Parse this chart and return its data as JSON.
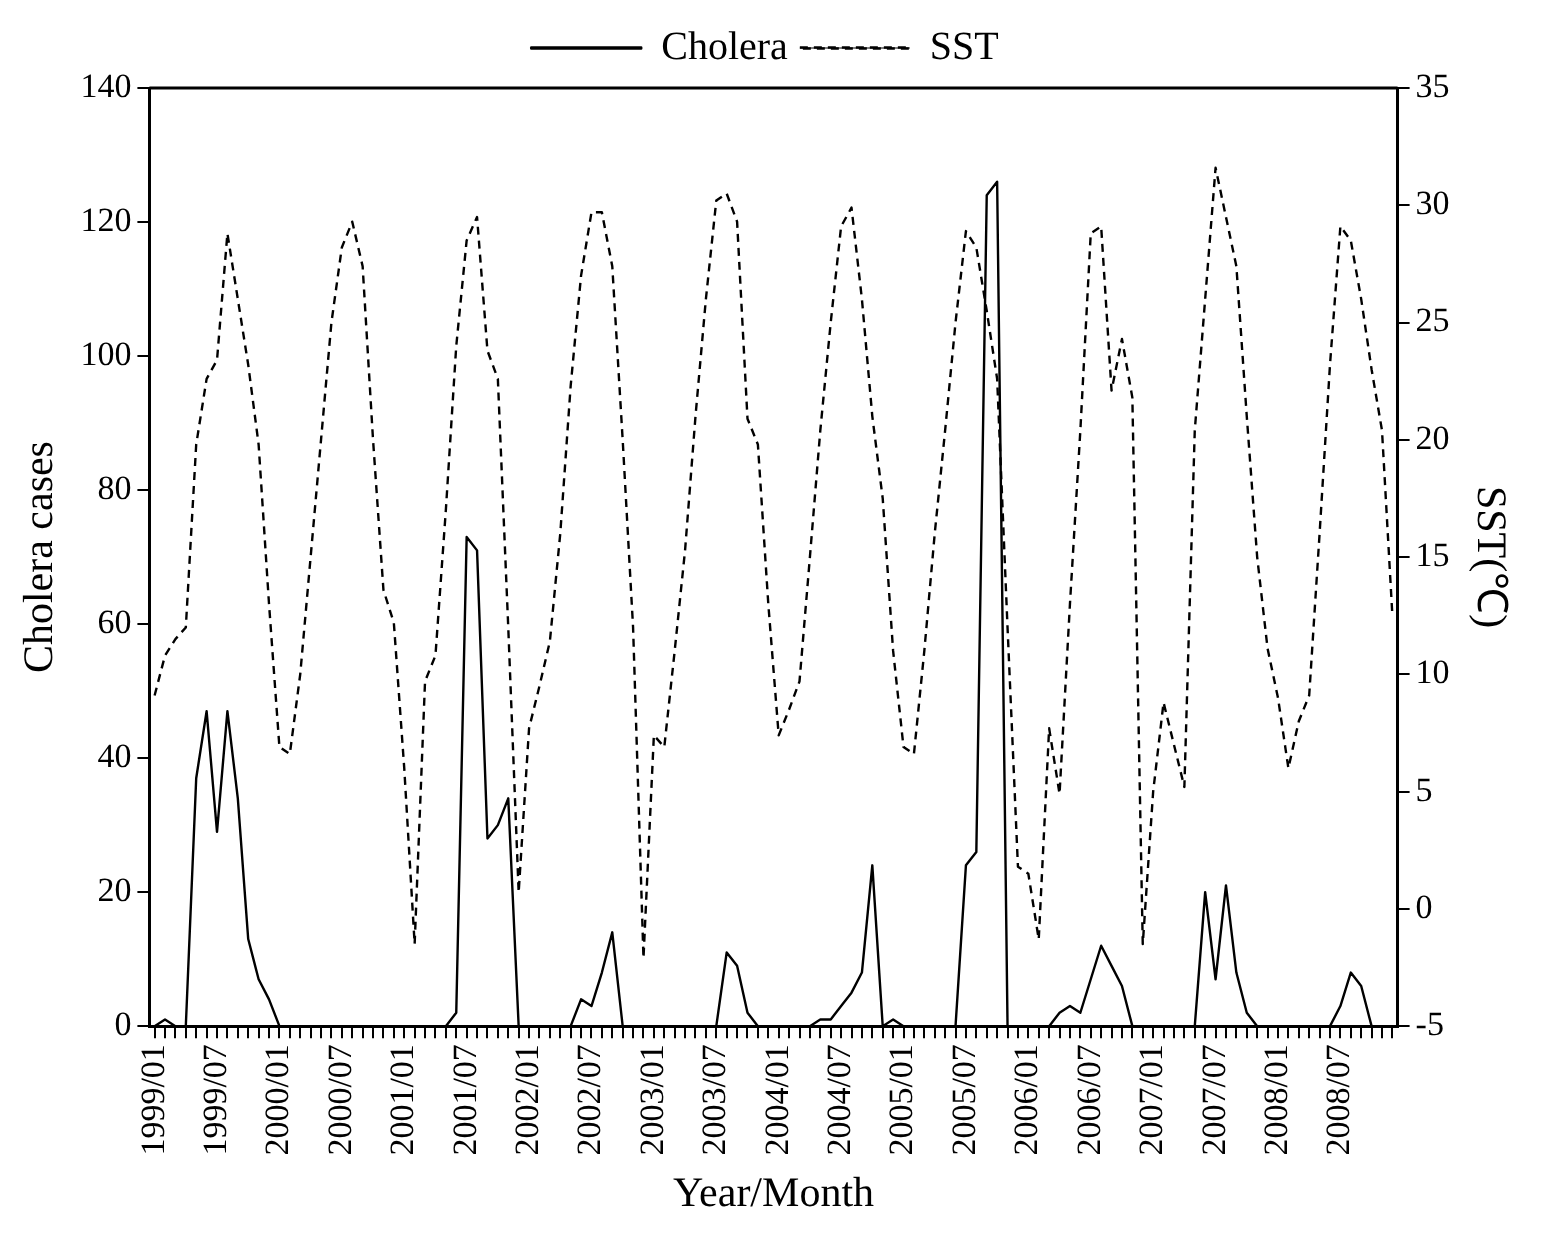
{
  "chart_data": {
    "type": "line",
    "xlabel": "Year/Month",
    "ylabel": "Cholera cases",
    "y2label": "SST(℃)",
    "categories": [
      "1999/01",
      null,
      null,
      null,
      null,
      null,
      "1999/07",
      null,
      null,
      null,
      null,
      null,
      "2000/01",
      null,
      null,
      null,
      null,
      null,
      "2000/07",
      null,
      null,
      null,
      null,
      null,
      "2001/01",
      null,
      null,
      null,
      null,
      null,
      "2001/07",
      null,
      null,
      null,
      null,
      null,
      "2002/01",
      null,
      null,
      null,
      null,
      null,
      "2002/07",
      null,
      null,
      null,
      null,
      null,
      "2003/01",
      null,
      null,
      null,
      null,
      null,
      "2003/07",
      null,
      null,
      null,
      null,
      null,
      "2004/01",
      null,
      null,
      null,
      null,
      null,
      "2004/07",
      null,
      null,
      null,
      null,
      null,
      "2005/01",
      null,
      null,
      null,
      null,
      null,
      "2005/07",
      null,
      null,
      null,
      null,
      null,
      "2006/01",
      null,
      null,
      null,
      null,
      null,
      "2006/07",
      null,
      null,
      null,
      null,
      null,
      "2007/01",
      null,
      null,
      null,
      null,
      null,
      "2007/07",
      null,
      null,
      null,
      null,
      null,
      "2008/01",
      null,
      null,
      null,
      null,
      null,
      "2008/07",
      null,
      null,
      null,
      null,
      null
    ],
    "series": [
      {
        "name": "Cholera",
        "color": "#000000",
        "line_style": "solid",
        "values": [
          0,
          1,
          0,
          0,
          37,
          47,
          29,
          47,
          34,
          13,
          7,
          4,
          0,
          0,
          0,
          0,
          0,
          0,
          0,
          0,
          0,
          0,
          0,
          0,
          0,
          0,
          0,
          0,
          0,
          2,
          73,
          71,
          28,
          30,
          34,
          0,
          0,
          0,
          0,
          0,
          0,
          4,
          3,
          8,
          14,
          0,
          0,
          0,
          0,
          0,
          0,
          0,
          0,
          0,
          0,
          11,
          9,
          2,
          0,
          0,
          0,
          0,
          0,
          0,
          1,
          1,
          3,
          5,
          8,
          24,
          0,
          1,
          0,
          0,
          0,
          0,
          0,
          0,
          24,
          26,
          124,
          126,
          0,
          0,
          0,
          0,
          0,
          2,
          3,
          2,
          7,
          12,
          9,
          6,
          0,
          0,
          0,
          0,
          0,
          0,
          0,
          20,
          7,
          21,
          8,
          2,
          0,
          0,
          0,
          0,
          0,
          0,
          0,
          0,
          3,
          8,
          6,
          0,
          0,
          0
        ]
      },
      {
        "name": "SST",
        "color": "#000000",
        "line_style": "dashed",
        "axis": "y2",
        "values": [
          9.1,
          10.8,
          11.5,
          12,
          19.8,
          22.6,
          23.4,
          28.8,
          26,
          23.2,
          19.8,
          13,
          6.9,
          6.6,
          10,
          15,
          20,
          25,
          28.2,
          29.3,
          27.4,
          20,
          13.6,
          12.2,
          6,
          -1.5,
          9.7,
          10.8,
          17,
          24,
          28.5,
          29.5,
          23.8,
          22.6,
          12,
          0.7,
          7.7,
          9.5,
          11.4,
          16,
          22.3,
          27,
          29.7,
          29.7,
          27.4,
          20,
          12,
          -2.1,
          7.4,
          6.9,
          11,
          15.3,
          21,
          26,
          30.2,
          30.5,
          29.3,
          20.9,
          19.8,
          13,
          7.4,
          8.5,
          9.7,
          15,
          20.4,
          25,
          29.1,
          29.9,
          26,
          21,
          17.5,
          11,
          6.9,
          6.6,
          11,
          16,
          20.4,
          25,
          28.9,
          28.2,
          25.5,
          22.6,
          12,
          1.8,
          1.5,
          -1.3,
          7.7,
          4.9,
          13,
          20.4,
          28.8,
          29.1,
          22.1,
          24.3,
          21.8,
          -1.5,
          5,
          8.8,
          7,
          5.2,
          20.4,
          26,
          31.6,
          29.5,
          27.4,
          21,
          15,
          11.1,
          9,
          6,
          8,
          9.1,
          16,
          23.2,
          29.1,
          28.5,
          26,
          23,
          20.4,
          12.5
        ]
      }
    ],
    "ylim": [
      0,
      140
    ],
    "yticks": [
      0,
      20,
      40,
      60,
      80,
      100,
      120,
      140
    ],
    "y2lim": [
      -5,
      35
    ],
    "y2ticks": [
      -5,
      0,
      5,
      10,
      15,
      20,
      25,
      30,
      35
    ],
    "grid": false,
    "legend": "top",
    "marker": "none"
  }
}
